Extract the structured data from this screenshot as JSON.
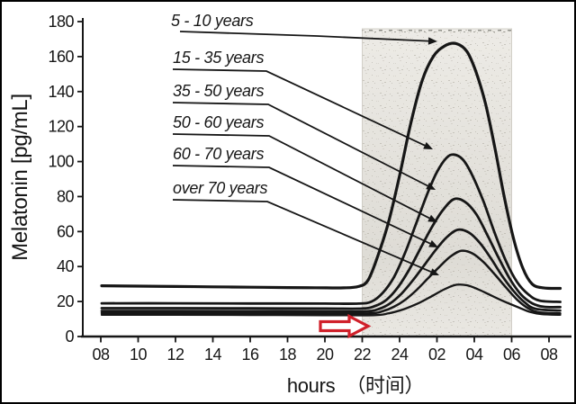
{
  "chart_data": {
    "type": "line",
    "title": "",
    "ylabel": "Melatonin [pg/mL]",
    "xlabel_parts": {
      "latin": "hours",
      "cjk": "（时间）"
    },
    "ylim": [
      0,
      180
    ],
    "y_ticks": [
      0,
      20,
      40,
      60,
      80,
      100,
      120,
      140,
      160,
      180
    ],
    "x_ticks": [
      {
        "hour": 8,
        "label": "08"
      },
      {
        "hour": 10,
        "label": "10"
      },
      {
        "hour": 12,
        "label": "12"
      },
      {
        "hour": 14,
        "label": "14"
      },
      {
        "hour": 16,
        "label": "16"
      },
      {
        "hour": 18,
        "label": "18"
      },
      {
        "hour": 20,
        "label": "20"
      },
      {
        "hour": 22,
        "label": "22"
      },
      {
        "hour": 24,
        "label": "24"
      },
      {
        "hour": 26,
        "label": "02"
      },
      {
        "hour": 28,
        "label": "04"
      },
      {
        "hour": 30,
        "label": "06"
      },
      {
        "hour": 32,
        "label": "08"
      }
    ],
    "night_shading": {
      "from_hour": 22,
      "to_hour": 30,
      "from_label": "22",
      "to_label": "06",
      "color": "#edebe6"
    },
    "grid": "off",
    "legend_position": "upper-left labels with leader arrows to curves",
    "series": [
      {
        "name": "5 - 10 years",
        "daytime_baseline_pg_ml": 28,
        "peak_pg_ml": 167,
        "stroke_width": 3.2,
        "points": [
          [
            8.05,
            29
          ],
          [
            10,
            28.8
          ],
          [
            12,
            28.6
          ],
          [
            14,
            28.4
          ],
          [
            16,
            28.2
          ],
          [
            18,
            28
          ],
          [
            19.5,
            27.9
          ],
          [
            21,
            27.8
          ],
          [
            21.8,
            28.6
          ],
          [
            22.3,
            32
          ],
          [
            22.8,
            45
          ],
          [
            23.4,
            65
          ],
          [
            24,
            92
          ],
          [
            24.6,
            122
          ],
          [
            25.2,
            146
          ],
          [
            25.8,
            160
          ],
          [
            26.4,
            166
          ],
          [
            27,
            167.5
          ],
          [
            27.6,
            163
          ],
          [
            28.1,
            151
          ],
          [
            28.6,
            133
          ],
          [
            29.1,
            108
          ],
          [
            29.6,
            80
          ],
          [
            30.1,
            56
          ],
          [
            30.6,
            39
          ],
          [
            31.1,
            30
          ],
          [
            31.7,
            27.8
          ],
          [
            32.6,
            27.5
          ]
        ]
      },
      {
        "name": "15 - 35 years",
        "daytime_baseline_pg_ml": 19,
        "peak_pg_ml": 104,
        "stroke_width": 2.8,
        "points": [
          [
            8.05,
            19
          ],
          [
            12,
            19
          ],
          [
            16,
            18.9
          ],
          [
            20,
            18.8
          ],
          [
            21.8,
            18.8
          ],
          [
            22.5,
            20
          ],
          [
            23.1,
            25
          ],
          [
            23.7,
            34
          ],
          [
            24.3,
            48
          ],
          [
            24.9,
            65
          ],
          [
            25.5,
            82
          ],
          [
            26,
            94
          ],
          [
            26.5,
            102
          ],
          [
            26.9,
            104
          ],
          [
            27.4,
            101
          ],
          [
            27.9,
            92
          ],
          [
            28.5,
            77
          ],
          [
            29.1,
            59
          ],
          [
            29.7,
            43
          ],
          [
            30.3,
            31
          ],
          [
            30.9,
            24
          ],
          [
            31.5,
            20.5
          ],
          [
            32.6,
            19.8
          ]
        ]
      },
      {
        "name": "35 - 50 years",
        "daytime_baseline_pg_ml": 16,
        "peak_pg_ml": 79,
        "stroke_width": 2.8,
        "points": [
          [
            8.05,
            16.2
          ],
          [
            12,
            16.2
          ],
          [
            16,
            16.1
          ],
          [
            20,
            16
          ],
          [
            22,
            16
          ],
          [
            22.7,
            17.5
          ],
          [
            23.3,
            21
          ],
          [
            23.9,
            28
          ],
          [
            24.5,
            38
          ],
          [
            25.1,
            50
          ],
          [
            25.7,
            62
          ],
          [
            26.3,
            72
          ],
          [
            26.9,
            78.5
          ],
          [
            27.5,
            77
          ],
          [
            28.1,
            70
          ],
          [
            28.7,
            58
          ],
          [
            29.3,
            45
          ],
          [
            29.9,
            33
          ],
          [
            30.5,
            24
          ],
          [
            31.1,
            19
          ],
          [
            31.7,
            17
          ],
          [
            32.6,
            16.8
          ]
        ]
      },
      {
        "name": "50 - 60 years",
        "daytime_baseline_pg_ml": 14.5,
        "peak_pg_ml": 61,
        "stroke_width": 2.7,
        "points": [
          [
            8.05,
            14.6
          ],
          [
            12,
            14.6
          ],
          [
            16,
            14.5
          ],
          [
            20,
            14.4
          ],
          [
            22.2,
            14.4
          ],
          [
            22.9,
            15.8
          ],
          [
            23.5,
            19
          ],
          [
            24.1,
            24.5
          ],
          [
            24.7,
            32
          ],
          [
            25.3,
            40.5
          ],
          [
            25.9,
            49
          ],
          [
            26.5,
            56.5
          ],
          [
            27.1,
            61
          ],
          [
            27.7,
            59.5
          ],
          [
            28.3,
            53.5
          ],
          [
            28.9,
            44.5
          ],
          [
            29.5,
            34.5
          ],
          [
            30.1,
            26
          ],
          [
            30.7,
            19.5
          ],
          [
            31.3,
            15.8
          ],
          [
            32.6,
            14.8
          ]
        ]
      },
      {
        "name": "60 - 70 years",
        "daytime_baseline_pg_ml": 13.5,
        "peak_pg_ml": 49,
        "stroke_width": 2.5,
        "points": [
          [
            8.05,
            13.4
          ],
          [
            12,
            13.4
          ],
          [
            16,
            13.3
          ],
          [
            20,
            13.2
          ],
          [
            22.4,
            13.2
          ],
          [
            23.1,
            14.5
          ],
          [
            23.7,
            17
          ],
          [
            24.3,
            21
          ],
          [
            24.9,
            26.5
          ],
          [
            25.5,
            33
          ],
          [
            26.1,
            39.5
          ],
          [
            26.7,
            45.5
          ],
          [
            27.3,
            49
          ],
          [
            27.9,
            47.5
          ],
          [
            28.5,
            42.5
          ],
          [
            29.1,
            35.5
          ],
          [
            29.7,
            28
          ],
          [
            30.3,
            21
          ],
          [
            30.9,
            16
          ],
          [
            31.5,
            13.8
          ],
          [
            32.6,
            13.2
          ]
        ]
      },
      {
        "name": "over 70 years",
        "daytime_baseline_pg_ml": 12.5,
        "peak_pg_ml": 30,
        "stroke_width": 2.3,
        "points": [
          [
            8.05,
            12.4
          ],
          [
            12,
            12.4
          ],
          [
            16,
            12.3
          ],
          [
            20,
            12.2
          ],
          [
            22.6,
            12.2
          ],
          [
            23.4,
            13.2
          ],
          [
            24.2,
            15.5
          ],
          [
            25,
            19
          ],
          [
            25.8,
            23.5
          ],
          [
            26.4,
            27
          ],
          [
            27,
            29.5
          ],
          [
            27.6,
            29.3
          ],
          [
            28.2,
            27
          ],
          [
            28.8,
            24
          ],
          [
            29.6,
            20
          ],
          [
            30.4,
            16.5
          ],
          [
            31,
            14
          ],
          [
            31.6,
            12.8
          ],
          [
            32.6,
            12.4
          ]
        ]
      }
    ]
  },
  "annotations": {
    "red_arrow": {
      "color": "#d0202a",
      "fill": "#ffffff",
      "direction": "right"
    }
  },
  "ink_color": "#161616"
}
